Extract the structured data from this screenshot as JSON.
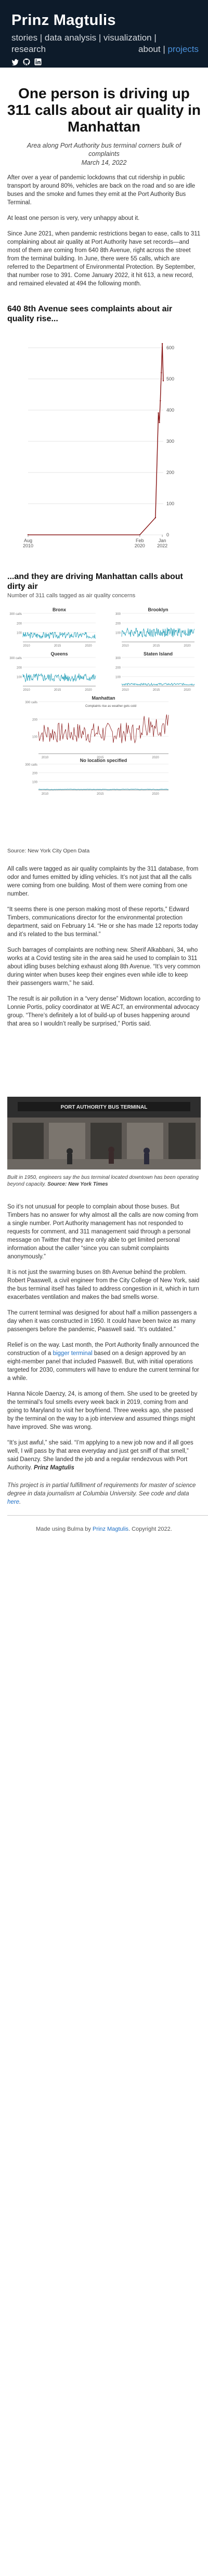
{
  "site": {
    "title": "Prinz Magtulis",
    "desc_line1": "stories | data analysis | visualization |",
    "nav_research": "research",
    "nav_about": "about",
    "nav_sep": "|",
    "nav_projects": "projects"
  },
  "article": {
    "headline": "One person is driving up 311 calls about air quality in Manhattan",
    "subhead": "Area along Port Authority bus terminal corners bulk of complaints",
    "date": "March 14, 2022",
    "p1": "After over a year of pandemic lockdowns that cut ridership in public transport by around 80%, vehicles are back on the road and so are idle buses and the smoke and fumes they emit at the Port Authority Bus Terminal.",
    "p2": "At least one person is very, very unhappy about it.",
    "p3_prefix": "Since June 2021, when pandemic restrictions began to ease, calls to 311 complaining about air quality at Port Authority have set records—and most of them are coming from 640 8th Avenue, right across the street from the terminal building. In June, there were 55 calls, which are referred to the Department of Environmental Protection. By September, that number rose to 391. Come January 2022, it hit 613, a new record, and remained elevated at 494 the following month.",
    "chart1_heading": "640 8th Avenue sees complaints about air quality rise...",
    "chart2_heading": "...and they are driving Manhattan calls about dirty air",
    "chart2_sub": "Number of 311 calls tagged as air quality concerns",
    "source": "Source: New York City Open Data",
    "p4": "All calls were tagged as air quality complaints by the 311 database, from odor and fumes emitted by idling vehicles. It’s not just that all the calls were coming from one building. Most of them were coming from one number.",
    "p5": "“It seems there is one person making most of these reports,” Edward Timbers, communications director for the environmental protection department, said on February 14. “He or she has made 12 reports today and it’s related to the bus terminal.”",
    "p6": "Such barrages of complaints are nothing new. Sherif Alkabbani, 34, who works at a Covid testing site in the area said he used to complain to 311 about idling buses belching exhaust along 8th Avenue. “It’s very common during winter when buses keep their engines even while idle to keep their passengers warm,” he said.",
    "p7": "The result is air pollution in a “very dense” Midtown location, according to Lonnie Portis, policy coordinator at WE ACT, an environmental advocacy group. “There’s definitely a lot of build-up of buses happening around that area so I wouldn’t really be surprised,” Portis said.",
    "photo_sign": "PORT AUTHORITY BUS TERMINAL",
    "caption": "Built in 1950, engineers say the bus terminal located downtown has been operating beyond capacity.",
    "caption_credit": "Source: New York Times",
    "p8": "So it’s not unusual for people to complain about those buses. But Timbers has no answer for why almost all the calls are now coming from a single number. Port Authority management has not responded to requests for comment, and 311 management said through a personal message on Twitter that they are only able to get limited personal information about the caller “since you can submit complaints anonymously.”",
    "p9": "It is not just the swarming buses on 8th Avenue behind the problem. Robert Paaswell, a civil engineer from the City College of New York, said the bus terminal itself has failed to address congestion in it, which in turn exacerbates ventilation and makes the bad smells worse.",
    "p10": "The current terminal was designed for about half a million passengers a day when it was constructed in 1950. It could have been twice as many passengers before the pandemic, Paaswell said. “It’s outdated.”",
    "p11_pre": "Relief is on the way. Last month, the Port Authority finally announced the construction of a ",
    "p11_link": "bigger terminal",
    "p11_post": " based on a design approved by an eight-member panel that included Paaswell. But, with initial operations targeted for 2030, commuters will have to endure the current terminal for a while.",
    "p12": "Hanna Nicole Daenzy, 24, is among of them. She used to be greeted by the terminal’s foul smells every week back in 2019, coming from and going to Maryland to visit her boyfriend. Three weeks ago, she passed by the terminal on the way to a job interview and assumed things might have improved. She was wrong.",
    "p13_pre": "“It’s just awful,” she said. “I’m applying to a new job now and if all goes well, I will pass by that area everyday and just get sniff of that smell,” said Daenzy. She landed the job and a regular rendezvous with Port Authority.",
    "signature": "Prinz Magtulis",
    "footer_note_pre": "This project is in partial fulfillment of requirements for master of science degree in data journalism at Columbia University. See code and data ",
    "footer_note_link": "here",
    "footer_note_post": ".",
    "made_with_pre": "Made using Bulma by ",
    "made_with_link": "Prinz Magtulis",
    "made_with_post": ". Copyright 2022."
  },
  "chart_data": [
    {
      "type": "line",
      "title": "640 8th Avenue sees complaints about air quality rise...",
      "x_ticks": [
        "Aug\n2010",
        "Feb\n2020",
        "Jan\n2022"
      ],
      "y_ticks": [
        0,
        100,
        200,
        300,
        400,
        500,
        600
      ],
      "ylim": [
        0,
        650
      ],
      "x": [
        "2010-08",
        "2020-02",
        "2021-06",
        "2021-09",
        "2021-10",
        "2021-11",
        "2021-12",
        "2022-01",
        "2022-02"
      ],
      "values": [
        0,
        0,
        55,
        391,
        360,
        430,
        520,
        613,
        494
      ],
      "color": "#8b1a1a"
    },
    {
      "type": "line",
      "title": "...and they are driving Manhattan calls about dirty air",
      "panels": [
        {
          "name": "Bronx",
          "color": "#1a9bb5",
          "ylim": [
            0,
            300
          ],
          "y_ticks": [
            "300 calls",
            "200",
            "100"
          ],
          "x_ticks": [
            "2010",
            "2015",
            "2020"
          ],
          "level": 70
        },
        {
          "name": "Brooklyn",
          "color": "#1a9bb5",
          "ylim": [
            0,
            300
          ],
          "y_ticks": [
            "300",
            "200",
            "100"
          ],
          "x_ticks": [
            "2010",
            "2015",
            "2020"
          ],
          "level": 100
        },
        {
          "name": "Queens",
          "color": "#1a9bb5",
          "ylim": [
            0,
            300
          ],
          "y_ticks": [
            "300 calls",
            "200",
            "100"
          ],
          "x_ticks": [
            "2010",
            "2015",
            "2020"
          ],
          "level": 90
        },
        {
          "name": "Staten Island",
          "color": "#1a9bb5",
          "ylim": [
            0,
            300
          ],
          "y_ticks": [
            "300",
            "200",
            "100"
          ],
          "x_ticks": [
            "2010",
            "2015",
            "2020"
          ],
          "level": 20
        },
        {
          "name": "Manhattan",
          "color": "#8b1a1a",
          "ylim": [
            0,
            300
          ],
          "y_ticks": [
            "300 calls",
            "200",
            "100"
          ],
          "x_ticks": [
            "2010",
            "2015",
            "2020"
          ],
          "level": 120,
          "annotation": "Complaints rise as weather gets cold"
        },
        {
          "name": "No location specified",
          "color": "#1a9bb5",
          "ylim": [
            0,
            300
          ],
          "y_ticks": [
            "300 calls",
            "200",
            "100"
          ],
          "x_ticks": [
            "2010",
            "2015",
            "2020"
          ],
          "level": 8
        }
      ]
    }
  ]
}
